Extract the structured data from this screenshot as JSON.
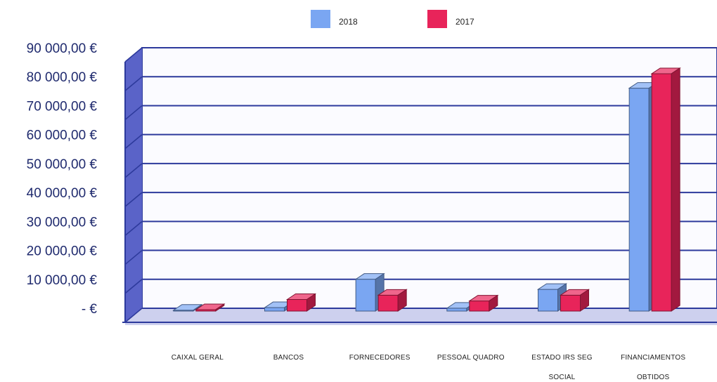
{
  "chart_data": {
    "type": "bar",
    "categories": [
      [
        "CAIXAL GERAL"
      ],
      [
        "BANCOS"
      ],
      [
        "FORNECEDORES"
      ],
      [
        "PESSOAL QUADRO"
      ],
      [
        "ESTADO IRS SEG",
        "SOCIAL"
      ],
      [
        "FINANCIAMENTOS",
        "OBTIDOS"
      ]
    ],
    "series": [
      {
        "name": "2018",
        "color": "#7aa6f2",
        "values": [
          300,
          1200,
          11000,
          1000,
          7500,
          77000
        ]
      },
      {
        "name": "2017",
        "color": "#e8245a",
        "values": [
          500,
          4000,
          5500,
          3500,
          5500,
          82000
        ]
      }
    ],
    "y_tick_labels": [
      "-  €",
      "10 000,00 €",
      "20 000,00 €",
      "30 000,00 €",
      "40 000,00 €",
      "50 000,00 €",
      "60 000,00 €",
      "70 000,00 €",
      "80 000,00 €",
      "90 000,00 €"
    ],
    "ylim": [
      0,
      90000
    ],
    "grid": true,
    "legend_position": "top-center",
    "three_d": true
  }
}
